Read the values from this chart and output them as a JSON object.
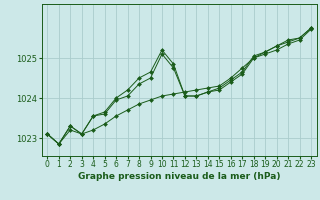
{
  "title": "Graphe pression niveau de la mer (hPa)",
  "bg_color": "#cce8e8",
  "grid_color": "#aacccc",
  "line_color": "#1a5c1a",
  "marker_color": "#1a5c1a",
  "xlim": [
    -0.5,
    23.5
  ],
  "ylim": [
    1022.55,
    1026.35
  ],
  "yticks": [
    1023,
    1024,
    1025
  ],
  "xticks": [
    0,
    1,
    2,
    3,
    4,
    5,
    6,
    7,
    8,
    9,
    10,
    11,
    12,
    13,
    14,
    15,
    16,
    17,
    18,
    19,
    20,
    21,
    22,
    23
  ],
  "series": [
    [
      1023.1,
      1022.85,
      1023.2,
      1023.1,
      1023.2,
      1023.35,
      1023.55,
      1023.7,
      1023.85,
      1023.95,
      1024.05,
      1024.1,
      1024.15,
      1024.2,
      1024.25,
      1024.3,
      1024.5,
      1024.75,
      1025.0,
      1025.1,
      1025.2,
      1025.35,
      1025.45,
      1025.72
    ],
    [
      1023.1,
      1022.85,
      1023.3,
      1023.1,
      1023.55,
      1023.6,
      1023.95,
      1024.05,
      1024.35,
      1024.5,
      1025.1,
      1024.75,
      1024.05,
      1024.05,
      1024.15,
      1024.2,
      1024.4,
      1024.6,
      1025.0,
      1025.15,
      1025.3,
      1025.4,
      1025.5,
      1025.75
    ],
    [
      1023.1,
      1022.85,
      1023.3,
      1023.1,
      1023.55,
      1023.65,
      1024.0,
      1024.2,
      1024.5,
      1024.65,
      1025.2,
      1024.85,
      1024.05,
      1024.05,
      1024.15,
      1024.25,
      1024.45,
      1024.65,
      1025.05,
      1025.15,
      1025.3,
      1025.45,
      1025.5,
      1025.75
    ]
  ],
  "title_fontsize": 6.5,
  "tick_fontsize": 5.5,
  "ytick_fontsize": 6.0
}
